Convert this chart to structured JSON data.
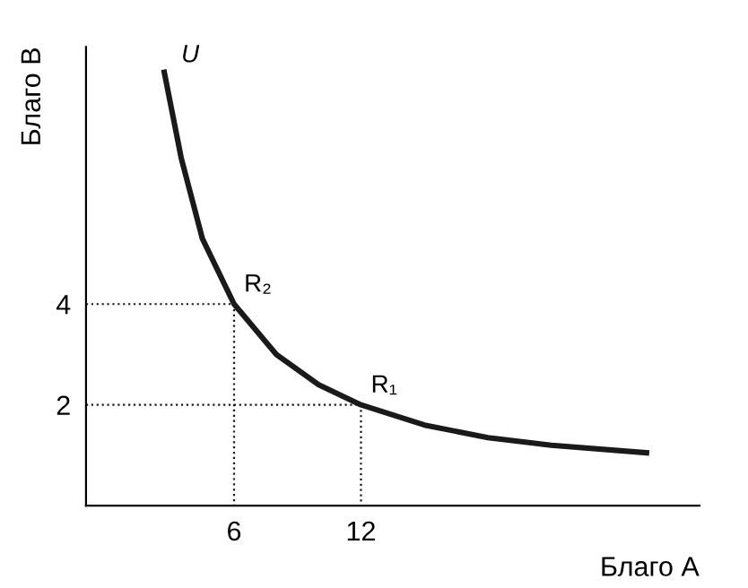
{
  "chart_data": {
    "type": "line",
    "xlabel": "Благо А",
    "ylabel": "Благо В",
    "xlim": [
      -1,
      28
    ],
    "ylim": [
      0,
      9.1
    ],
    "xticks": [
      6,
      12
    ],
    "yticks": [
      2,
      4
    ],
    "grid": false,
    "legend": false,
    "series": [
      {
        "name": "U",
        "color": "#1a1a1a",
        "line_style": "solid",
        "x": [
          2.7,
          3.5,
          4.5,
          6,
          8,
          10,
          12,
          15,
          18,
          21,
          25.5
        ],
        "values": [
          8.6,
          6.9,
          5.3,
          4,
          3,
          2.4,
          2,
          1.6,
          1.35,
          1.2,
          1.05
        ]
      },
      {
        "color": "#1a1a1a",
        "line_style": "dotted",
        "x": [
          -1,
          6,
          6
        ],
        "values": [
          4,
          4,
          0
        ]
      },
      {
        "color": "#1a1a1a",
        "line_style": "dotted",
        "x": [
          -1,
          12,
          12
        ],
        "values": [
          2,
          2,
          0
        ]
      }
    ],
    "annotations": [
      {
        "text": "R₂",
        "x": 6,
        "y": 4
      },
      {
        "text": "R₁",
        "x": 12,
        "y": 2
      }
    ]
  }
}
